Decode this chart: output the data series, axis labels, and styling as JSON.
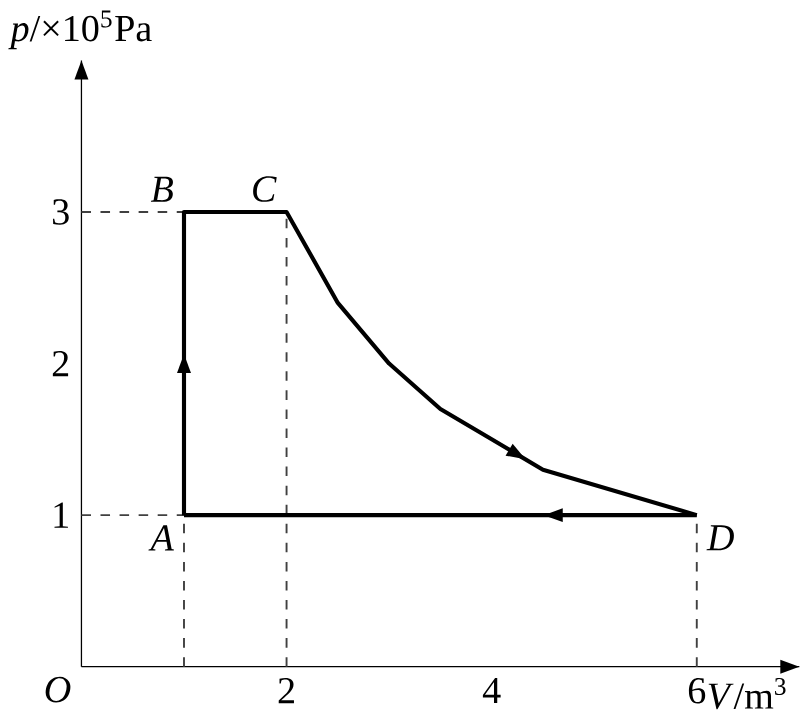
{
  "chart_data": {
    "type": "line",
    "xlabel": "*V*/m$^{3}$",
    "ylabel": "*p*/×10$^{5}$Pa",
    "series": [
      {
        "color": "#000000",
        "x": [
          1,
          1,
          2,
          2.5,
          3,
          3.5,
          4,
          4.5,
          5,
          5.5,
          6
        ],
        "values": [
          1,
          3,
          3,
          2.4,
          2,
          1.7,
          1.5,
          1.3,
          1.2,
          1.1,
          1
        ]
      },
      {
        "color": "#000000",
        "x": [
          1,
          6
        ],
        "values": [
          1,
          1
        ]
      }
    ],
    "xlim": [
      0,
      7
    ],
    "ylim": [
      0,
      4
    ],
    "xticks": [
      2,
      4,
      6
    ],
    "yticks": [
      1,
      2,
      3
    ],
    "marker": "none",
    "line_style": "solid",
    "grid": false,
    "ref_lines": [
      {
        "axis": "y",
        "value": 3,
        "line_style": "dashed",
        "color": "#404040"
      },
      {
        "axis": "y",
        "value": 1,
        "line_style": "dashed",
        "color": "#404040"
      },
      {
        "axis": "x",
        "value": 1,
        "line_style": "dashed",
        "color": "#404040"
      },
      {
        "axis": "x",
        "value": 2,
        "line_style": "dashed",
        "color": "#404040"
      },
      {
        "axis": "x",
        "value": 6,
        "line_style": "dashed",
        "color": "#404040"
      }
    ],
    "annotations": [
      {
        "text": "A",
        "x": 1,
        "y": 1
      },
      {
        "text": "B",
        "x": 1,
        "y": 3
      },
      {
        "text": "C",
        "x": 2,
        "y": 3
      },
      {
        "text": "D",
        "x": 6,
        "y": 1
      },
      "O"
    ]
  }
}
